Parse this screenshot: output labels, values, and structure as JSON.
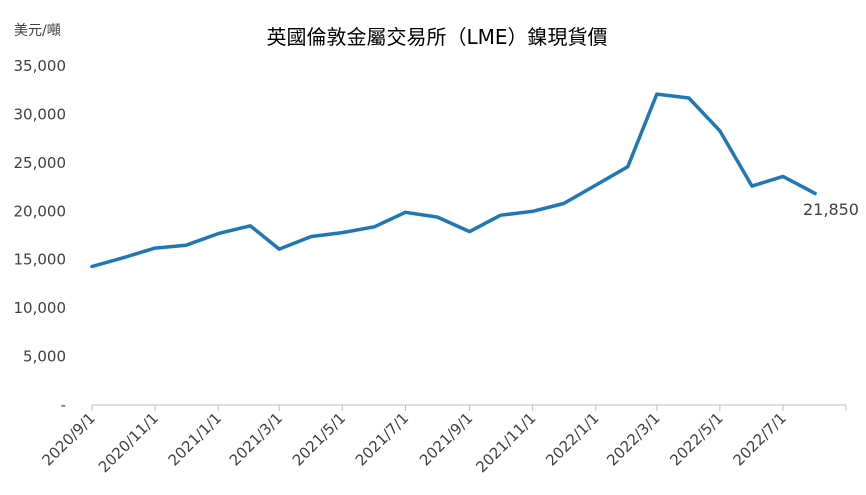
{
  "chart_data": {
    "type": "line",
    "title": "英國倫敦金屬交易所（LME）鎳現貨價",
    "ylabel": "美元/噸",
    "xlabel": "",
    "ylim": [
      0,
      35000
    ],
    "yticks": [
      0,
      5000,
      10000,
      15000,
      20000,
      25000,
      30000,
      35000
    ],
    "ytick_labels": [
      "-",
      "5,000",
      "10,000",
      "15,000",
      "20,000",
      "25,000",
      "30,000",
      "35,000"
    ],
    "xtick_labels": [
      "2020/9/1",
      "2020/11/1",
      "2021/1/1",
      "2021/3/1",
      "2021/5/1",
      "2021/7/1",
      "2021/9/1",
      "2021/11/1",
      "2022/1/1",
      "2022/3/1",
      "2022/5/1",
      "2022/7/1"
    ],
    "grid": false,
    "legend": "none",
    "line_color": "#1f77b4",
    "series": [
      {
        "x": [
          "2020/9/1",
          "2020/10/1",
          "2020/11/1",
          "2020/12/1",
          "2021/1/1",
          "2021/2/1",
          "2021/3/1",
          "2021/4/1",
          "2021/5/1",
          "2021/6/1",
          "2021/7/1",
          "2021/8/1",
          "2021/9/1",
          "2021/10/1",
          "2021/11/1",
          "2021/12/1",
          "2022/1/1",
          "2022/2/1",
          "2022/3/1",
          "2022/4/1",
          "2022/5/1",
          "2022/6/1",
          "2022/7/1",
          "2022/8/1"
        ],
        "values": [
          14300,
          15200,
          16200,
          16500,
          17700,
          18500,
          16100,
          17400,
          17800,
          18400,
          19900,
          19400,
          17900,
          19600,
          20000,
          20800,
          22700,
          24600,
          32100,
          31700,
          28300,
          22600,
          23600,
          21850
        ]
      }
    ],
    "end_label": "21,850"
  }
}
